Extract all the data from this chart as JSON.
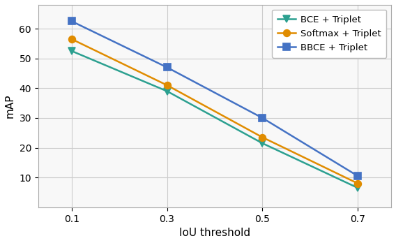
{
  "x": [
    0.1,
    0.3,
    0.5,
    0.7
  ],
  "series": [
    {
      "label": "BCE + Triplet",
      "values": [
        52.5,
        39.0,
        21.5,
        6.5
      ],
      "color": "#2ca090",
      "marker": "v",
      "markersize": 7,
      "linewidth": 1.8,
      "markerfacecolor": "#2ca090",
      "markeredgecolor": "#2ca090"
    },
    {
      "label": "Softmax + Triplet",
      "values": [
        56.5,
        41.0,
        23.5,
        8.0
      ],
      "color": "#e08c00",
      "marker": "o",
      "markersize": 7,
      "linewidth": 1.8,
      "markerfacecolor": "#e08c00",
      "markeredgecolor": "#e08c00"
    },
    {
      "label": "BBCE + Triplet",
      "values": [
        62.5,
        47.0,
        30.0,
        10.5
      ],
      "color": "#4472c4",
      "marker": "s",
      "markersize": 7,
      "linewidth": 1.8,
      "markerfacecolor": "#4472c4",
      "markeredgecolor": "#4472c4"
    }
  ],
  "xlabel": "IoU threshold",
  "ylabel": "mAP",
  "xlim": [
    0.03,
    0.77
  ],
  "ylim": [
    0,
    68
  ],
  "yticks": [
    10,
    20,
    30,
    40,
    50,
    60
  ],
  "xticks": [
    0.1,
    0.3,
    0.5,
    0.7
  ],
  "grid": true,
  "legend_loc": "upper right",
  "background_color": "#ffffff",
  "axes_facecolor": "#f8f8f8"
}
